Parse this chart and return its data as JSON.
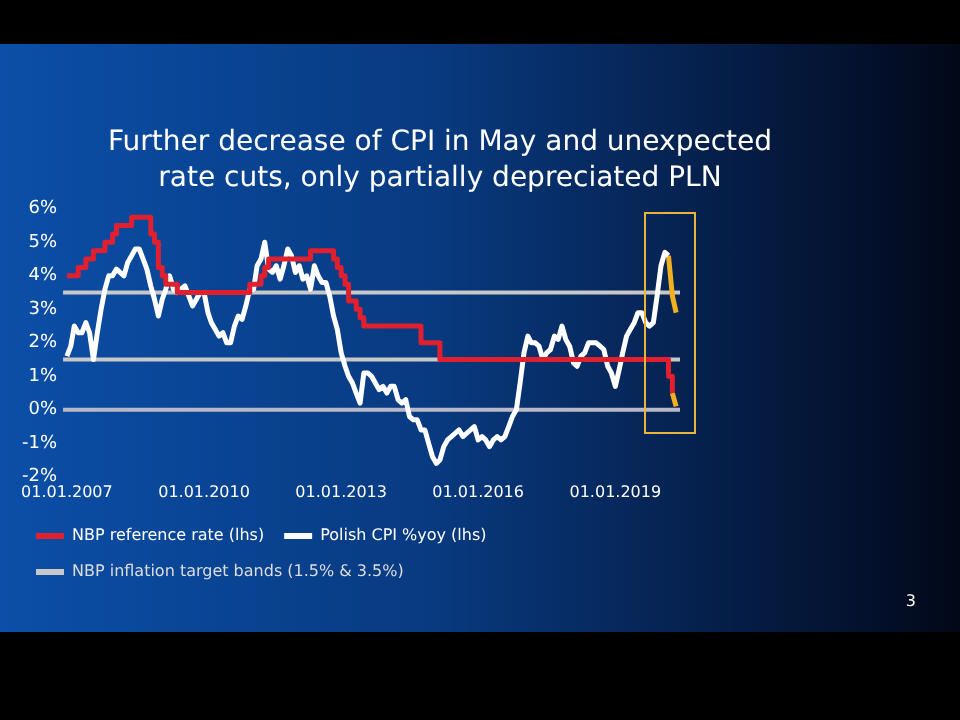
{
  "chart_data": {
    "type": "line",
    "title": "Further decrease of CPI in May and unexpected rate cuts, only partially depreciated PLN",
    "xlim": [
      "2006-12",
      "2020-06"
    ],
    "xticks": [
      {
        "value": "2007-01",
        "label": "01.01.2007"
      },
      {
        "value": "2010-01",
        "label": "01.01.2010"
      },
      {
        "value": "2013-01",
        "label": "01.01.2013"
      },
      {
        "value": "2016-01",
        "label": "01.01.2016"
      },
      {
        "value": "2019-01",
        "label": "01.01.2019"
      }
    ],
    "ylim": [
      -2,
      6
    ],
    "yticks": [
      {
        "value": -2,
        "label": "-2%"
      },
      {
        "value": -1,
        "label": "-1%"
      },
      {
        "value": 0,
        "label": "0%"
      },
      {
        "value": 1,
        "label": "1%"
      },
      {
        "value": 2,
        "label": "2%"
      },
      {
        "value": 3,
        "label": "3%"
      },
      {
        "value": 4,
        "label": "4%"
      },
      {
        "value": 5,
        "label": "5%"
      },
      {
        "value": 6,
        "label": "6%"
      }
    ],
    "grid": false,
    "legend": "bottom",
    "marker": "none",
    "line_style": "solid",
    "series": [
      {
        "name": "NBP reference rate (lhs)",
        "type": "step",
        "color": "#e0202e",
        "x": [
          "2007-01",
          "2007-04",
          "2007-06",
          "2007-08",
          "2007-11",
          "2008-01",
          "2008-02",
          "2008-06",
          "2008-11",
          "2008-12",
          "2009-01",
          "2009-02",
          "2009-03",
          "2009-06",
          "2011-01",
          "2011-04",
          "2011-05",
          "2011-06",
          "2012-05",
          "2012-11",
          "2012-12",
          "2013-01",
          "2013-02",
          "2013-03",
          "2013-05",
          "2013-06",
          "2013-07",
          "2014-10",
          "2015-03",
          "2020-03",
          "2020-04"
        ],
        "values": [
          4.0,
          4.25,
          4.5,
          4.75,
          5.0,
          5.25,
          5.5,
          5.75,
          5.25,
          5.0,
          4.25,
          4.0,
          3.75,
          3.5,
          3.75,
          4.0,
          4.25,
          4.5,
          4.75,
          4.5,
          4.25,
          4.0,
          3.75,
          3.25,
          3.0,
          2.75,
          2.5,
          2.0,
          1.5,
          1.0,
          0.5
        ]
      },
      {
        "name": "Polish CPI %yoy (lhs)",
        "type": "line",
        "color": "#ffffff",
        "x": [
          "2007-01",
          "2007-02",
          "2007-03",
          "2007-04",
          "2007-05",
          "2007-06",
          "2007-07",
          "2007-08",
          "2007-09",
          "2007-10",
          "2007-11",
          "2007-12",
          "2008-01",
          "2008-02",
          "2008-03",
          "2008-04",
          "2008-05",
          "2008-06",
          "2008-07",
          "2008-08",
          "2008-09",
          "2008-10",
          "2008-11",
          "2008-12",
          "2009-01",
          "2009-02",
          "2009-03",
          "2009-04",
          "2009-05",
          "2009-06",
          "2009-07",
          "2009-08",
          "2009-09",
          "2009-10",
          "2009-11",
          "2009-12",
          "2010-01",
          "2010-02",
          "2010-03",
          "2010-04",
          "2010-05",
          "2010-06",
          "2010-07",
          "2010-08",
          "2010-09",
          "2010-10",
          "2010-11",
          "2010-12",
          "2011-01",
          "2011-02",
          "2011-03",
          "2011-04",
          "2011-05",
          "2011-06",
          "2011-07",
          "2011-08",
          "2011-09",
          "2011-10",
          "2011-11",
          "2011-12",
          "2012-01",
          "2012-02",
          "2012-03",
          "2012-04",
          "2012-05",
          "2012-06",
          "2012-07",
          "2012-08",
          "2012-09",
          "2012-10",
          "2012-11",
          "2012-12",
          "2013-01",
          "2013-02",
          "2013-03",
          "2013-04",
          "2013-05",
          "2013-06",
          "2013-07",
          "2013-08",
          "2013-09",
          "2013-10",
          "2013-11",
          "2013-12",
          "2014-01",
          "2014-02",
          "2014-03",
          "2014-04",
          "2014-05",
          "2014-06",
          "2014-07",
          "2014-08",
          "2014-09",
          "2014-10",
          "2014-11",
          "2014-12",
          "2015-01",
          "2015-02",
          "2015-03",
          "2015-04",
          "2015-05",
          "2015-06",
          "2015-07",
          "2015-08",
          "2015-09",
          "2015-10",
          "2015-11",
          "2015-12",
          "2016-01",
          "2016-02",
          "2016-03",
          "2016-04",
          "2016-05",
          "2016-06",
          "2016-07",
          "2016-08",
          "2016-09",
          "2016-10",
          "2016-11",
          "2016-12",
          "2017-01",
          "2017-02",
          "2017-03",
          "2017-04",
          "2017-05",
          "2017-06",
          "2017-07",
          "2017-08",
          "2017-09",
          "2017-10",
          "2017-11",
          "2017-12",
          "2018-01",
          "2018-02",
          "2018-03",
          "2018-04",
          "2018-05",
          "2018-06",
          "2018-07",
          "2018-08",
          "2018-09",
          "2018-10",
          "2018-11",
          "2018-12",
          "2019-01",
          "2019-02",
          "2019-03",
          "2019-04",
          "2019-05",
          "2019-06",
          "2019-07",
          "2019-08",
          "2019-09",
          "2019-10",
          "2019-11",
          "2019-12",
          "2020-01",
          "2020-02",
          "2020-03"
        ],
        "values": [
          1.6,
          1.9,
          2.5,
          2.3,
          2.3,
          2.6,
          2.3,
          1.5,
          2.3,
          3.0,
          3.6,
          4.0,
          4.0,
          4.2,
          4.1,
          4.0,
          4.4,
          4.6,
          4.8,
          4.8,
          4.5,
          4.2,
          3.7,
          3.3,
          2.8,
          3.3,
          3.6,
          4.0,
          3.6,
          3.5,
          3.6,
          3.7,
          3.4,
          3.1,
          3.3,
          3.5,
          3.5,
          2.9,
          2.6,
          2.4,
          2.2,
          2.3,
          2.0,
          2.0,
          2.5,
          2.8,
          2.7,
          3.1,
          3.6,
          3.6,
          4.3,
          4.5,
          5.0,
          4.2,
          4.1,
          4.3,
          3.9,
          4.3,
          4.8,
          4.6,
          4.1,
          4.3,
          3.9,
          4.0,
          3.6,
          4.3,
          4.0,
          3.8,
          3.8,
          3.4,
          2.8,
          2.4,
          1.7,
          1.3,
          1.0,
          0.8,
          0.5,
          0.2,
          1.1,
          1.1,
          1.0,
          0.8,
          0.6,
          0.7,
          0.5,
          0.7,
          0.7,
          0.3,
          0.2,
          0.3,
          -0.2,
          -0.3,
          -0.3,
          -0.6,
          -0.6,
          -1.0,
          -1.4,
          -1.6,
          -1.5,
          -1.1,
          -0.9,
          -0.8,
          -0.7,
          -0.6,
          -0.8,
          -0.7,
          -0.6,
          -0.5,
          -0.9,
          -0.8,
          -0.9,
          -1.1,
          -0.9,
          -0.8,
          -0.9,
          -0.8,
          -0.5,
          -0.2,
          0.0,
          0.8,
          1.7,
          2.2,
          2.0,
          2.0,
          1.9,
          1.5,
          1.7,
          1.8,
          2.2,
          2.1,
          2.5,
          2.1,
          1.9,
          1.4,
          1.3,
          1.6,
          1.7,
          2.0,
          2.0,
          2.0,
          1.9,
          1.8,
          1.3,
          1.1,
          0.7,
          1.2,
          1.7,
          2.2,
          2.4,
          2.6,
          2.9,
          2.9,
          2.6,
          2.5,
          2.6,
          3.4,
          4.3,
          4.7,
          4.6
        ]
      },
      {
        "type": "line",
        "color": "#f0b020",
        "x": [
          "2020-03",
          "2020-04",
          "2020-05"
        ],
        "values": [
          4.6,
          3.4,
          2.9
        ]
      },
      {
        "type": "line",
        "color": "#f0b020",
        "x": [
          "2020-04",
          "2020-05"
        ],
        "values": [
          0.5,
          0.1
        ]
      }
    ],
    "ref_lines": [
      {
        "axis": "y",
        "value": 1.5,
        "label": "NBP inflation target bands (1.5% & 3.5%)",
        "color": "#c8c8c8",
        "line_style": "solid"
      },
      {
        "axis": "y",
        "value": 3.5,
        "color": "#c8c8c8",
        "line_style": "solid"
      },
      {
        "axis": "y",
        "value": 0,
        "color": "#b8b8c8",
        "line_style": "solid"
      }
    ],
    "annotations": [
      "3"
    ]
  }
}
